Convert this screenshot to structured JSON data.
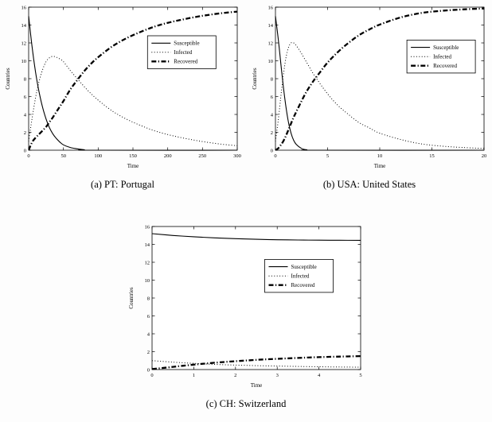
{
  "figure": {
    "background": "#fdfdfd",
    "line_color": "#000000"
  },
  "chart_data": [
    {
      "type": "line",
      "title": "",
      "caption": "(a) PT: Portugal",
      "xlabel": "Time",
      "ylabel": "Countries",
      "xlim": [
        0,
        300
      ],
      "ylim": [
        0,
        16
      ],
      "xticks": [
        0,
        50,
        100,
        150,
        200,
        250,
        300
      ],
      "yticks": [
        0,
        2,
        4,
        6,
        8,
        10,
        12,
        14,
        16
      ],
      "grid": false,
      "legend": [
        "Susceptible",
        "Infected",
        "Recovered"
      ],
      "legend_position": "inside-upper-right",
      "legend_pos": {
        "x": 0.57,
        "y": 0.2
      },
      "series": [
        {
          "name": "Susceptible",
          "style": "solid",
          "x": [
            0,
            5,
            10,
            15,
            20,
            25,
            30,
            35,
            40,
            45,
            50,
            60,
            70,
            80,
            90,
            300
          ],
          "y": [
            15,
            11.5,
            8.7,
            6.5,
            4.8,
            3.5,
            2.5,
            1.8,
            1.3,
            0.9,
            0.6,
            0.3,
            0.15,
            0.05,
            0,
            0
          ]
        },
        {
          "name": "Infected",
          "style": "dotted",
          "x": [
            0,
            5,
            10,
            15,
            20,
            25,
            30,
            35,
            40,
            45,
            50,
            60,
            70,
            80,
            90,
            100,
            120,
            140,
            160,
            180,
            200,
            220,
            240,
            260,
            280,
            300
          ],
          "y": [
            1,
            3.6,
            5.9,
            7.7,
            9.0,
            9.9,
            10.35,
            10.5,
            10.4,
            10.2,
            9.9,
            8.9,
            8.0,
            7.1,
            6.3,
            5.6,
            4.4,
            3.5,
            2.8,
            2.2,
            1.75,
            1.4,
            1.1,
            0.85,
            0.65,
            0.5
          ]
        },
        {
          "name": "Recovered",
          "style": "dashdot-bold",
          "x": [
            0,
            5,
            10,
            15,
            20,
            25,
            30,
            35,
            40,
            45,
            50,
            60,
            70,
            80,
            90,
            100,
            120,
            140,
            160,
            180,
            200,
            220,
            240,
            260,
            280,
            300
          ],
          "y": [
            0,
            0.9,
            1.4,
            1.8,
            2.2,
            2.6,
            3.15,
            3.7,
            4.3,
            4.9,
            5.5,
            6.8,
            7.85,
            8.85,
            9.7,
            10.4,
            11.6,
            12.5,
            13.2,
            13.8,
            14.25,
            14.6,
            14.9,
            15.15,
            15.35,
            15.5
          ]
        }
      ]
    },
    {
      "type": "line",
      "title": "",
      "caption": "(b) USA: United States",
      "xlabel": "Time",
      "ylabel": "Countries",
      "xlim": [
        0,
        20
      ],
      "ylim": [
        0,
        16
      ],
      "xticks": [
        0,
        5,
        10,
        15,
        20
      ],
      "yticks": [
        0,
        2,
        4,
        6,
        8,
        10,
        12,
        14,
        16
      ],
      "grid": false,
      "legend": [
        "Susceptible",
        "Infected",
        "Recovered"
      ],
      "legend_position": "inside-upper-right",
      "legend_pos": {
        "x": 0.63,
        "y": 0.23
      },
      "series": [
        {
          "name": "Susceptible",
          "style": "solid",
          "x": [
            0,
            0.25,
            0.5,
            0.75,
            1,
            1.25,
            1.5,
            1.75,
            2,
            2.5,
            3,
            4,
            20
          ],
          "y": [
            15,
            12.6,
            9.9,
            7.2,
            4.9,
            3.1,
            1.9,
            1.1,
            0.65,
            0.2,
            0.05,
            0,
            0
          ]
        },
        {
          "name": "Infected",
          "style": "dotted",
          "x": [
            0,
            0.25,
            0.5,
            0.75,
            1,
            1.25,
            1.5,
            1.75,
            2,
            2.5,
            3,
            3.5,
            4,
            5,
            6,
            7,
            8,
            9,
            10,
            12,
            14,
            16,
            18,
            20
          ],
          "y": [
            1,
            3.2,
            5.8,
            8.3,
            10.3,
            11.5,
            12,
            12,
            11.7,
            10.8,
            9.8,
            8.8,
            7.9,
            6.3,
            5,
            4,
            3.1,
            2.5,
            1.9,
            1.2,
            0.7,
            0.45,
            0.3,
            0.2
          ]
        },
        {
          "name": "Recovered",
          "style": "dashdot-bold",
          "x": [
            0,
            0.25,
            0.5,
            0.75,
            1,
            1.25,
            1.5,
            1.75,
            2,
            2.5,
            3,
            3.5,
            4,
            5,
            6,
            7,
            8,
            9,
            10,
            12,
            14,
            16,
            18,
            20
          ],
          "y": [
            0,
            0.2,
            0.55,
            1,
            1.6,
            2.3,
            3,
            3.7,
            4.3,
            5.5,
            6.6,
            7.5,
            8.3,
            9.8,
            11,
            12,
            12.85,
            13.5,
            14.05,
            14.85,
            15.35,
            15.6,
            15.75,
            15.85
          ]
        }
      ]
    },
    {
      "type": "line",
      "title": "",
      "caption": "(c) CH: Switzerland",
      "xlabel": "Time",
      "ylabel": "Countries",
      "xlim": [
        0,
        5
      ],
      "ylim": [
        0,
        16
      ],
      "xticks": [
        0,
        1,
        2,
        3,
        4,
        5
      ],
      "yticks": [
        0,
        2,
        4,
        6,
        8,
        10,
        12,
        14,
        16
      ],
      "grid": false,
      "legend": [
        "Susceptible",
        "Infected",
        "Recovered"
      ],
      "legend_position": "inside-upper-right",
      "legend_pos": {
        "x": 0.54,
        "y": 0.23
      },
      "series": [
        {
          "name": "Susceptible",
          "style": "solid",
          "x": [
            0,
            0.5,
            1,
            1.5,
            2,
            2.5,
            3,
            3.5,
            4,
            4.5,
            5
          ],
          "y": [
            15.2,
            15.0,
            14.85,
            14.73,
            14.64,
            14.57,
            14.52,
            14.49,
            14.47,
            14.46,
            14.45
          ]
        },
        {
          "name": "Infected",
          "style": "dotted",
          "x": [
            0,
            0.5,
            1,
            1.5,
            2,
            2.5,
            3,
            3.5,
            4,
            4.5,
            5
          ],
          "y": [
            1.0,
            0.83,
            0.69,
            0.58,
            0.5,
            0.44,
            0.39,
            0.35,
            0.31,
            0.28,
            0.26
          ]
        },
        {
          "name": "Recovered",
          "style": "dashdot-bold",
          "x": [
            0,
            0.5,
            1,
            1.5,
            2,
            2.5,
            3,
            3.5,
            4,
            4.5,
            5
          ],
          "y": [
            0.05,
            0.3,
            0.55,
            0.76,
            0.93,
            1.08,
            1.2,
            1.3,
            1.39,
            1.45,
            1.5
          ]
        }
      ]
    }
  ]
}
